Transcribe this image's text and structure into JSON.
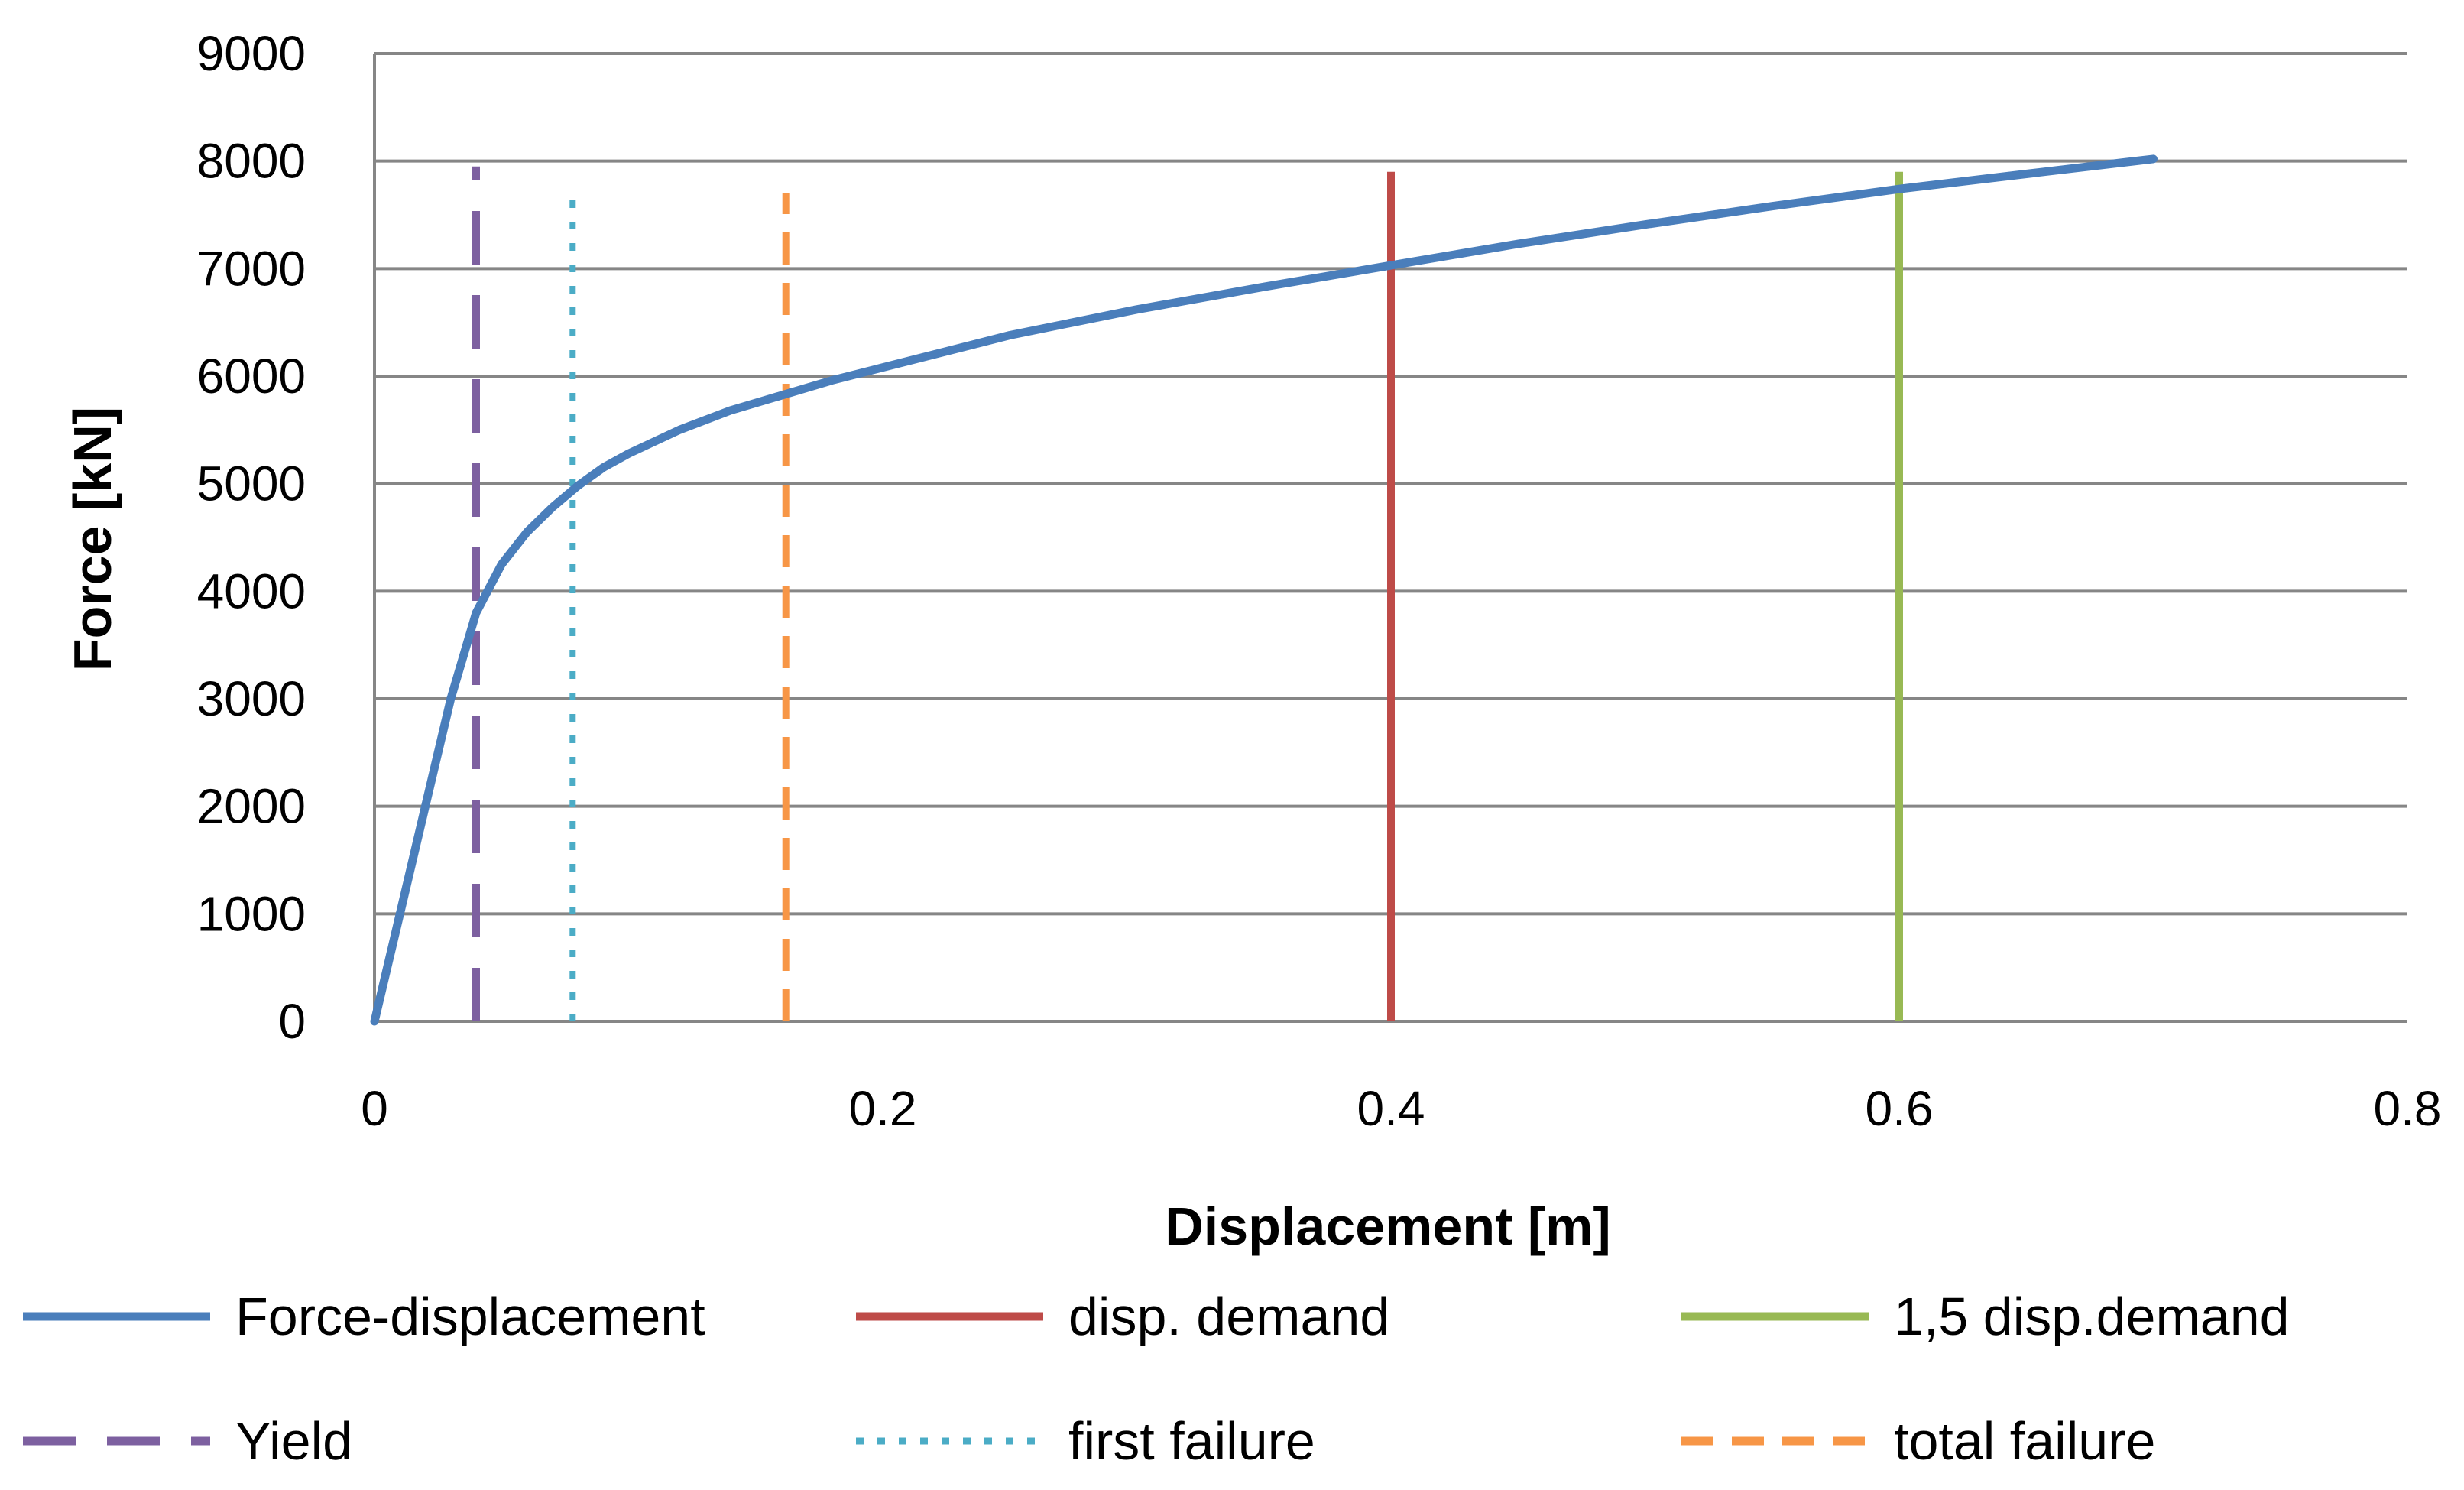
{
  "chart_data": {
    "type": "line",
    "title": "",
    "xlabel": "Displacement  [m]",
    "ylabel": "Force [kN]",
    "xlim": [
      0,
      0.8
    ],
    "ylim": [
      0,
      9000
    ],
    "xticks": [
      "0",
      "0.2",
      "0.4",
      "0.6",
      "0.8"
    ],
    "yticks": [
      "0",
      "1000",
      "2000",
      "3000",
      "4000",
      "5000",
      "6000",
      "7000",
      "8000",
      "9000"
    ],
    "grid": "horizontal",
    "legend_position": "bottom",
    "series": [
      {
        "name": "Force-displacement",
        "kind": "curve",
        "color": "#4A7EBB",
        "style": "solid",
        "x": [
          0,
          0.01,
          0.02,
          0.03,
          0.04,
          0.05,
          0.06,
          0.07,
          0.08,
          0.09,
          0.1,
          0.12,
          0.14,
          0.16,
          0.18,
          0.2,
          0.25,
          0.3,
          0.35,
          0.4,
          0.45,
          0.5,
          0.55,
          0.6,
          0.65,
          0.7
        ],
        "y": [
          0,
          1000,
          2000,
          3000,
          3800,
          4250,
          4550,
          4780,
          4980,
          5150,
          5280,
          5500,
          5680,
          5820,
          5960,
          6080,
          6380,
          6620,
          6830,
          7030,
          7230,
          7410,
          7580,
          7740,
          7880,
          8020
        ]
      },
      {
        "name": "disp. demand",
        "kind": "vline",
        "color": "#BE4B48",
        "style": "solid",
        "x": [
          0.4,
          0.4
        ],
        "y": [
          0,
          7900
        ]
      },
      {
        "name": "1,5 disp.demand",
        "kind": "vline",
        "color": "#98B954",
        "style": "solid",
        "x": [
          0.6,
          0.6
        ],
        "y": [
          0,
          7900
        ]
      },
      {
        "name": "Yield",
        "kind": "vline",
        "color": "#7D60A0",
        "style": "longdash",
        "x": [
          0.04,
          0.04
        ],
        "y": [
          0,
          7950
        ]
      },
      {
        "name": "first failure",
        "kind": "vline",
        "color": "#4BACC6",
        "style": "dot",
        "x": [
          0.078,
          0.078
        ],
        "y": [
          0,
          7700
        ]
      },
      {
        "name": "total failure",
        "kind": "vline",
        "color": "#F79646",
        "style": "dash",
        "x": [
          0.162,
          0.162
        ],
        "y": [
          0,
          7700
        ]
      }
    ]
  }
}
